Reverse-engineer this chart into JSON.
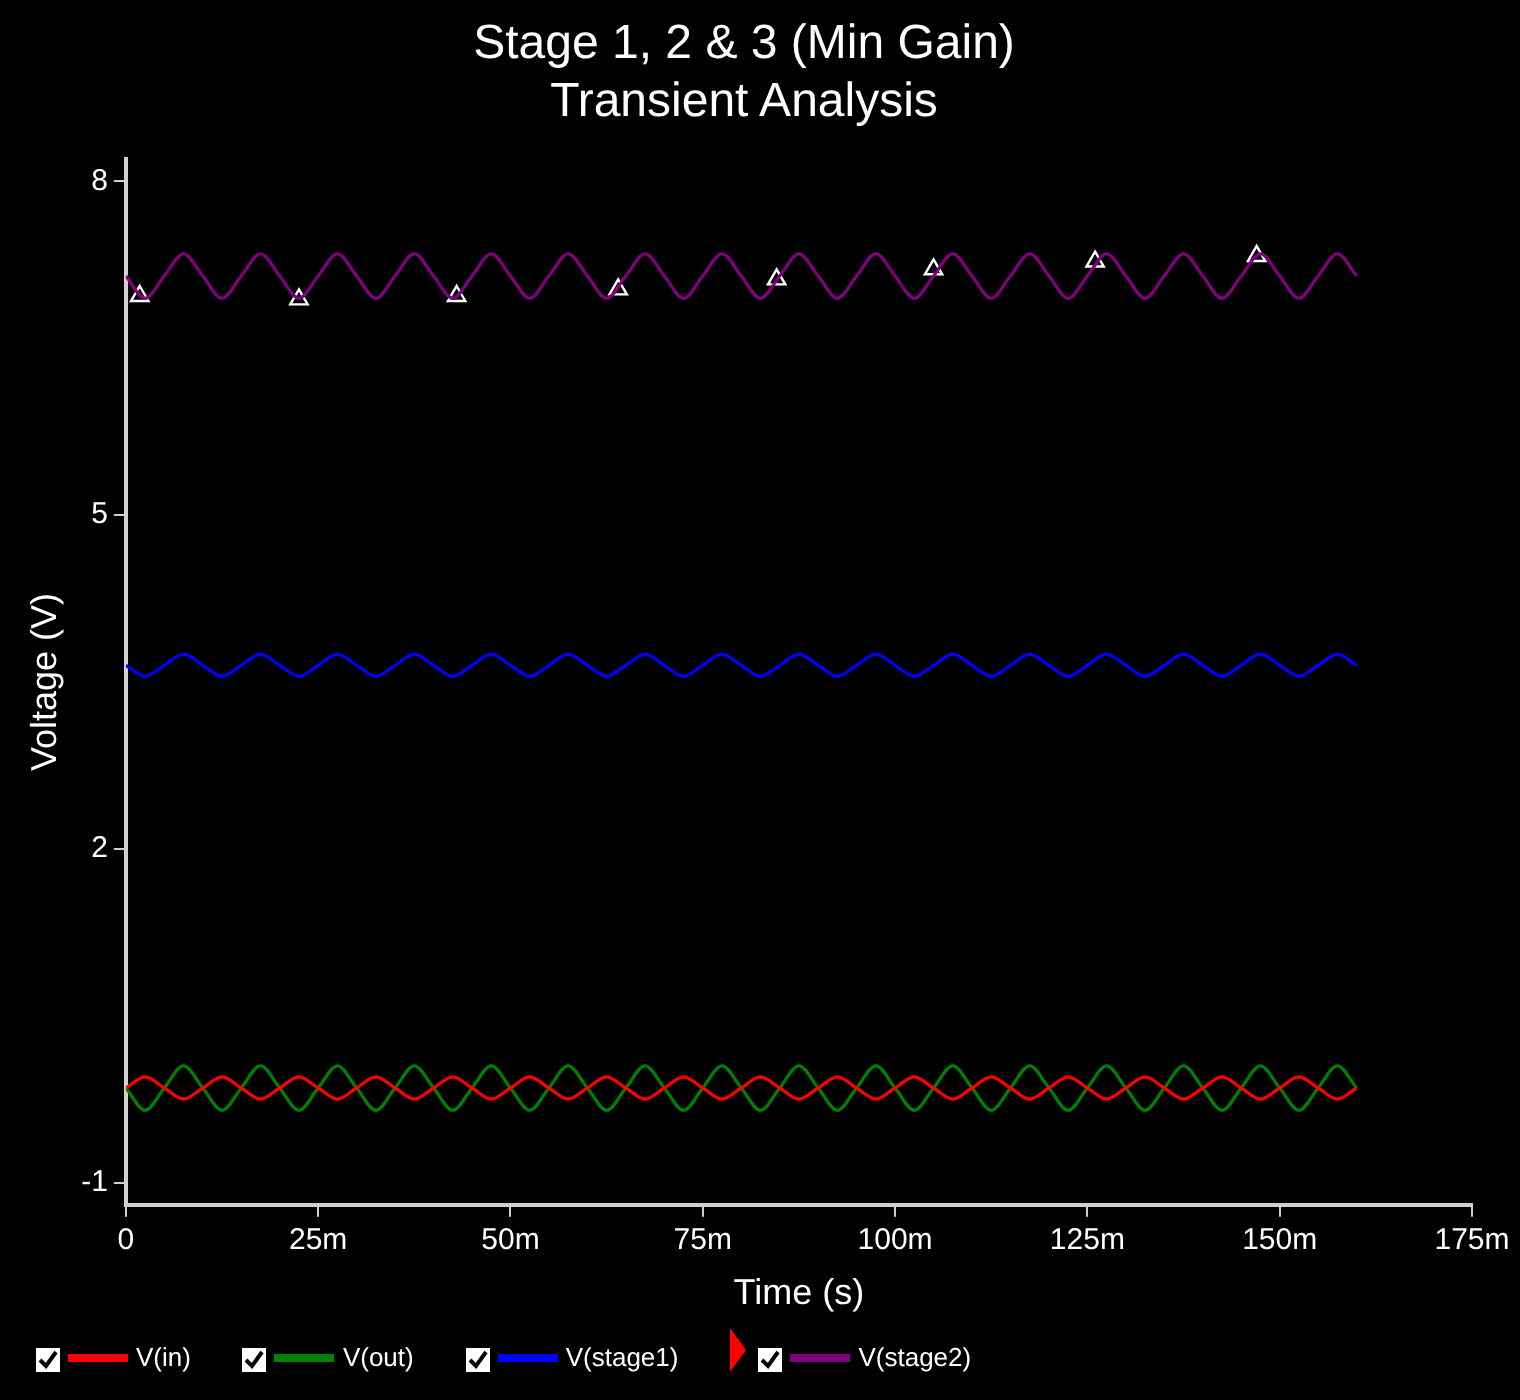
{
  "chart_data": {
    "type": "line",
    "title": "Stage 1, 2 & 3 (Min Gain)",
    "subtitle": "Transient Analysis",
    "xlabel": "Time (s)",
    "ylabel": "Voltage (V)",
    "x": [
      0,
      2.5,
      5,
      7.5,
      10,
      12.5,
      15,
      17.5,
      20,
      22.5,
      25,
      27.5,
      30,
      32.5,
      35,
      37.5,
      40,
      42.5,
      45,
      47.5,
      50,
      52.5,
      55,
      57.5,
      60,
      62.5,
      65,
      67.5,
      70,
      72.5,
      75,
      77.5,
      80,
      82.5,
      85,
      87.5,
      90,
      92.5,
      95,
      97.5,
      100,
      102.5,
      105,
      107.5,
      110,
      112.5,
      115,
      117.5,
      120,
      122.5,
      125,
      127.5,
      130,
      132.5,
      135,
      137.5,
      140,
      142.5,
      145,
      147.5,
      150,
      152.5,
      155,
      157.5,
      160
    ],
    "series": [
      {
        "name": "V(in)",
        "color": "#ff0000",
        "values": [
          -0.15,
          -0.05,
          -0.15,
          -0.25,
          -0.15,
          -0.05,
          -0.15,
          -0.25,
          -0.15,
          -0.05,
          -0.15,
          -0.25,
          -0.15,
          -0.05,
          -0.15,
          -0.25,
          -0.15,
          -0.05,
          -0.15,
          -0.25,
          -0.15,
          -0.05,
          -0.15,
          -0.25,
          -0.15,
          -0.05,
          -0.15,
          -0.25,
          -0.15,
          -0.05,
          -0.15,
          -0.25,
          -0.15,
          -0.05,
          -0.15,
          -0.25,
          -0.15,
          -0.05,
          -0.15,
          -0.25,
          -0.15,
          -0.05,
          -0.15,
          -0.25,
          -0.15,
          -0.05,
          -0.15,
          -0.25,
          -0.15,
          -0.05,
          -0.15,
          -0.25,
          -0.15,
          -0.05,
          -0.15,
          -0.25,
          -0.15,
          -0.05,
          -0.15,
          -0.25,
          -0.15,
          -0.05,
          -0.15,
          -0.25,
          -0.15
        ]
      },
      {
        "name": "V(out)",
        "color": "#008000",
        "values": [
          -0.15,
          -0.35,
          -0.15,
          0.05,
          -0.15,
          -0.35,
          -0.15,
          0.05,
          -0.15,
          -0.35,
          -0.15,
          0.05,
          -0.15,
          -0.35,
          -0.15,
          0.05,
          -0.15,
          -0.35,
          -0.15,
          0.05,
          -0.15,
          -0.35,
          -0.15,
          0.05,
          -0.15,
          -0.35,
          -0.15,
          0.05,
          -0.15,
          -0.35,
          -0.15,
          0.05,
          -0.15,
          -0.35,
          -0.15,
          0.05,
          -0.15,
          -0.35,
          -0.15,
          0.05,
          -0.15,
          -0.35,
          -0.15,
          0.05,
          -0.15,
          -0.35,
          -0.15,
          0.05,
          -0.15,
          -0.35,
          -0.15,
          0.05,
          -0.15,
          -0.35,
          -0.15,
          0.05,
          -0.15,
          -0.35,
          -0.15,
          0.05,
          -0.15,
          -0.35,
          -0.15,
          0.05,
          -0.15
        ]
      },
      {
        "name": "V(stage1)",
        "color": "#0000ff",
        "values": [
          3.65,
          3.55,
          3.65,
          3.75,
          3.65,
          3.55,
          3.65,
          3.75,
          3.65,
          3.55,
          3.65,
          3.75,
          3.65,
          3.55,
          3.65,
          3.75,
          3.65,
          3.55,
          3.65,
          3.75,
          3.65,
          3.55,
          3.65,
          3.75,
          3.65,
          3.55,
          3.65,
          3.75,
          3.65,
          3.55,
          3.65,
          3.75,
          3.65,
          3.55,
          3.65,
          3.75,
          3.65,
          3.55,
          3.65,
          3.75,
          3.65,
          3.55,
          3.65,
          3.75,
          3.65,
          3.55,
          3.65,
          3.75,
          3.65,
          3.55,
          3.65,
          3.75,
          3.65,
          3.55,
          3.65,
          3.75,
          3.65,
          3.55,
          3.65,
          3.75,
          3.65,
          3.55,
          3.65,
          3.75,
          3.65
        ]
      },
      {
        "name": "V(stage2)",
        "color": "#800080",
        "values": [
          7.15,
          6.95,
          7.15,
          7.35,
          7.15,
          6.95,
          7.15,
          7.35,
          7.15,
          6.95,
          7.15,
          7.35,
          7.15,
          6.95,
          7.15,
          7.35,
          7.15,
          6.95,
          7.15,
          7.35,
          7.15,
          6.95,
          7.15,
          7.35,
          7.15,
          6.95,
          7.15,
          7.35,
          7.15,
          6.95,
          7.15,
          7.35,
          7.15,
          6.95,
          7.15,
          7.35,
          7.15,
          6.95,
          7.15,
          7.35,
          7.15,
          6.95,
          7.15,
          7.35,
          7.15,
          6.95,
          7.15,
          7.35,
          7.15,
          6.95,
          7.15,
          7.35,
          7.15,
          6.95,
          7.15,
          7.35,
          7.15,
          6.95,
          7.15,
          7.35,
          7.15,
          6.95,
          7.15,
          7.35,
          7.15
        ]
      },
      {
        "type": "scatter",
        "marker": "triangle",
        "color": "#ffffff",
        "x": [
          1.8,
          22.5,
          43,
          64,
          84.6,
          105,
          126,
          147
        ],
        "values": [
          6.97,
          6.94,
          6.97,
          7.03,
          7.12,
          7.21,
          7.28,
          7.33
        ]
      }
    ],
    "xlim": [
      0,
      175
    ],
    "xticks": [
      0,
      {
        "value": 25,
        "label": "25m"
      },
      {
        "value": 50,
        "label": "50m"
      },
      {
        "value": 75,
        "label": "75m"
      },
      {
        "value": 100,
        "label": "100m"
      },
      {
        "value": 125,
        "label": "125m"
      },
      {
        "value": 150,
        "label": "150m"
      },
      {
        "value": 175,
        "label": "175m"
      }
    ],
    "ylim": [
      -1.2,
      8.2
    ],
    "yticks": [
      -1,
      2,
      5,
      8
    ],
    "legend": "bottom",
    "marker": "none",
    "line_style": "solid"
  }
}
